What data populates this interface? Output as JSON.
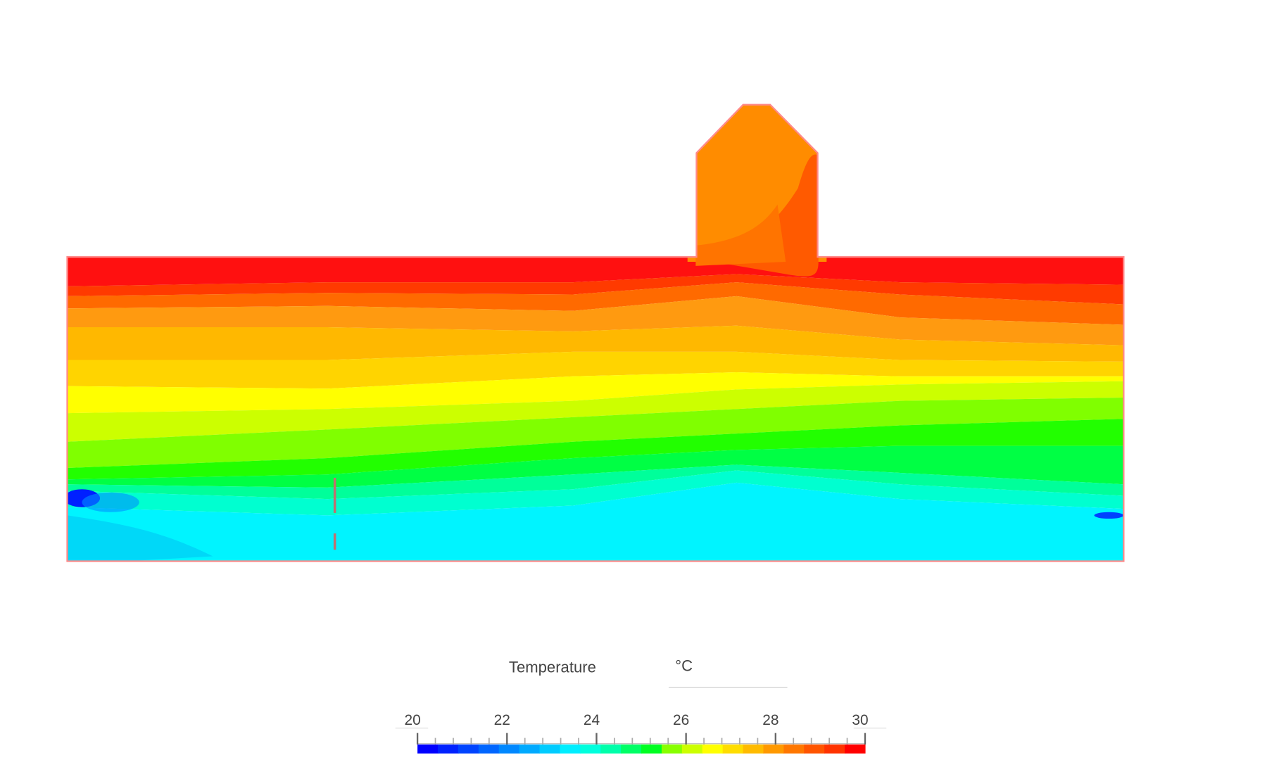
{
  "legend": {
    "title": "Temperature",
    "unit": "°C",
    "range": [
      20,
      30
    ],
    "ticks": [
      20,
      22,
      24,
      26,
      28,
      30
    ],
    "colors": [
      "#0000ff",
      "#0022ff",
      "#0044ff",
      "#0066ff",
      "#0088ff",
      "#00aaff",
      "#00ccff",
      "#00eeff",
      "#00ffdd",
      "#00ffaa",
      "#00ff66",
      "#00ff22",
      "#88ff00",
      "#ccff00",
      "#ffff00",
      "#ffdd00",
      "#ffbb00",
      "#ff9900",
      "#ff7700",
      "#ff5500",
      "#ff3300",
      "#ff0000"
    ]
  }
}
